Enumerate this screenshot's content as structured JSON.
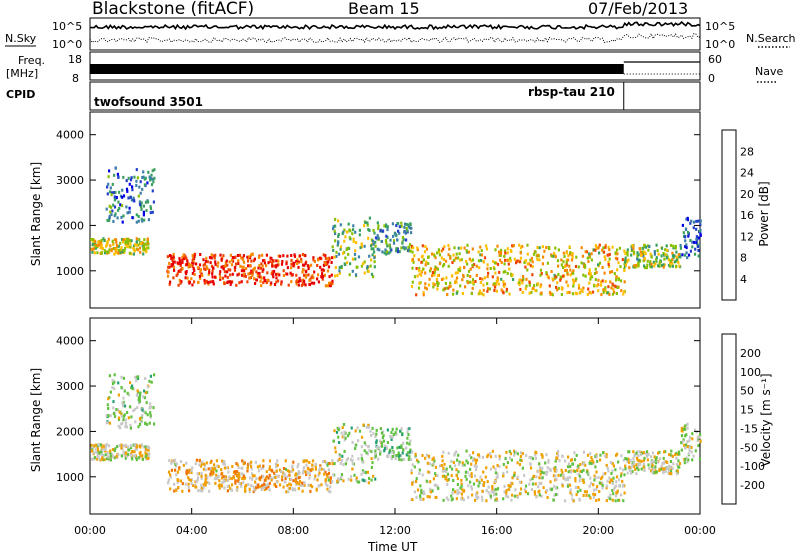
{
  "header": {
    "station": "Blackstone (fitACF)",
    "beam": "Beam 15",
    "date": "07/Feb/2013"
  },
  "left_labels": {
    "nsky": "N.Sky",
    "freq_line1": "Freq.",
    "freq_line2": "[MHz]",
    "cpid": "CPID"
  },
  "right_labels": {
    "nsearch": "N.Search",
    "nave": "Nave"
  },
  "noise_axis": {
    "top": "10^5",
    "bottom": "10^0"
  },
  "freq_axis": {
    "top": "18",
    "bottom": "8"
  },
  "nave_axis": {
    "top": "60",
    "bottom": "0"
  },
  "cpid": {
    "segments": [
      {
        "label": "twofsound 3501",
        "start_hour": 0.0,
        "end_hour": 21.0
      },
      {
        "label": "rbsp-tau 210",
        "start_hour": 21.0,
        "end_hour": 24.0
      }
    ]
  },
  "colorbars": {
    "power": {
      "label": "Power [dB]",
      "ticks": [
        "28",
        "24",
        "20",
        "16",
        "12",
        "8",
        "4"
      ],
      "colors": [
        "#e80000",
        "#f04000",
        "#f78800",
        "#ffbf00",
        "#88c000",
        "#3aa060",
        "#3c7fa8",
        "#2340c8",
        "#0000e0"
      ]
    },
    "velocity": {
      "label": "Velocity [m s⁻¹]",
      "ticks": [
        "200",
        "100",
        "50",
        "15",
        "-15",
        "-50",
        "-100",
        "-200"
      ],
      "colors": [
        "#2020c0",
        "#1070b0",
        "#20a070",
        "#60c040",
        "#c8c8c8",
        "#f0a000",
        "#f07000",
        "#e84000",
        "#e00000"
      ]
    }
  },
  "chart_data": {
    "type": "heatmap",
    "x_axis": {
      "label": "Time UT",
      "range_hours": [
        0,
        24
      ],
      "tick_labels": [
        "00:00",
        "04:00",
        "08:00",
        "12:00",
        "16:00",
        "20:00",
        "00:00"
      ]
    },
    "y_axis": {
      "label": "Slant Range [km]",
      "range_km": [
        180,
        4500
      ],
      "tick_labels": [
        "1000",
        "2000",
        "3000",
        "4000"
      ]
    },
    "panels": [
      {
        "name": "Power",
        "units": "dB",
        "color_scale": [
          0,
          30
        ]
      },
      {
        "name": "Velocity",
        "units": "m s-1",
        "color_scale": [
          -250,
          250
        ]
      }
    ],
    "scatter_regions": [
      {
        "t0": 0.0,
        "t1": 2.3,
        "r_low": 1400,
        "r_high": 1750,
        "power": 17,
        "velocity": -5
      },
      {
        "t0": 0.6,
        "t1": 2.5,
        "r_low": 2100,
        "r_high": 3300,
        "power": 8,
        "velocity": 30
      },
      {
        "t0": 3.0,
        "t1": 9.5,
        "r_low": 700,
        "r_high": 1400,
        "power": 26,
        "velocity": -40
      },
      {
        "t0": 9.5,
        "t1": 11.2,
        "r_low": 900,
        "r_high": 2200,
        "power": 14,
        "velocity": 20
      },
      {
        "t0": 11.2,
        "t1": 12.6,
        "r_low": 1400,
        "r_high": 2100,
        "power": 10,
        "velocity": 40
      },
      {
        "t0": 12.6,
        "t1": 21.0,
        "r_low": 500,
        "r_high": 1600,
        "power": 19,
        "velocity": -10
      },
      {
        "t0": 21.0,
        "t1": 23.2,
        "r_low": 1100,
        "r_high": 1600,
        "power": 15,
        "velocity": -5
      },
      {
        "t0": 23.2,
        "t1": 24.0,
        "r_low": 1300,
        "r_high": 2200,
        "power": 6,
        "velocity": 10
      }
    ]
  }
}
